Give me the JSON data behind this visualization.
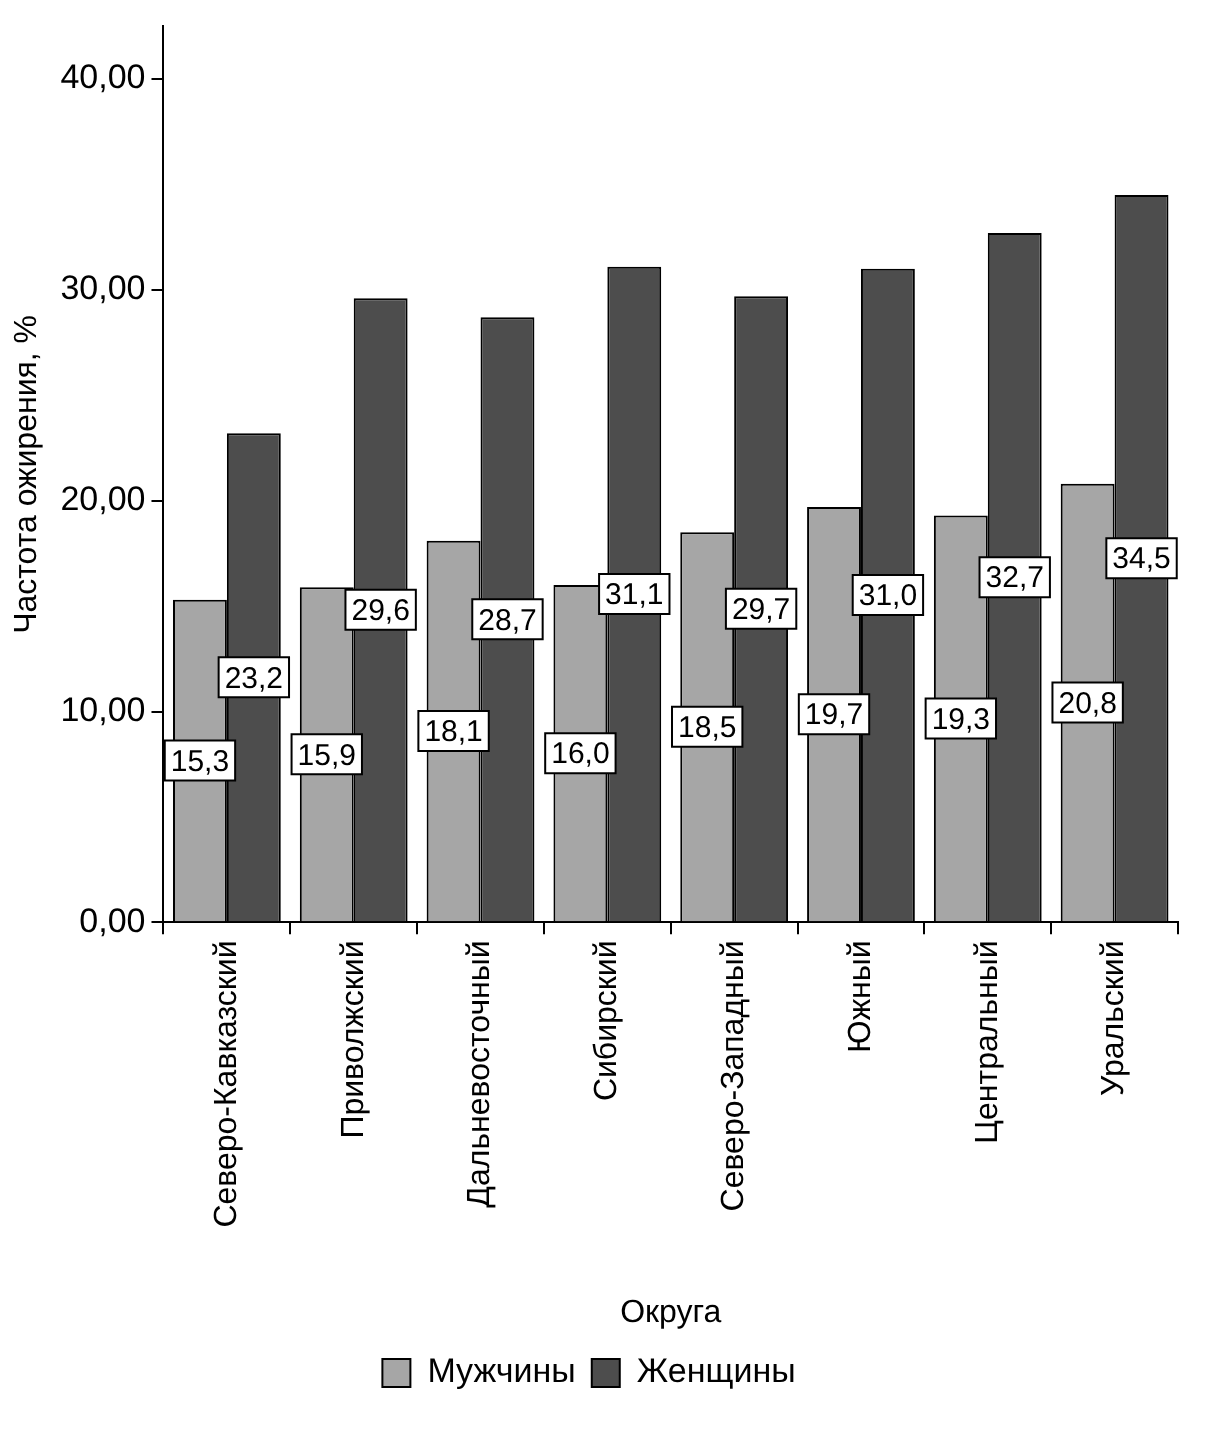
{
  "chart_data": {
    "type": "bar",
    "xlabel": "Округа",
    "ylabel": "Частота ожирения, %",
    "categories": [
      "Северо-Кавказский",
      "Приволжский",
      "Дальневосточный",
      "Сибирский",
      "Северо-Западный",
      "Южный",
      "Центральный",
      "Уральский"
    ],
    "series": [
      {
        "name": "Мужчины",
        "color": "#a6a6a6",
        "values": [
          15.3,
          15.9,
          18.1,
          16.0,
          18.5,
          19.7,
          19.3,
          20.8
        ],
        "value_labels": [
          "15,3",
          "15,9",
          "18,1",
          "16,0",
          "18,5",
          "19,7",
          "19,3",
          "20,8"
        ]
      },
      {
        "name": "Женщины",
        "color": "#4d4d4d",
        "values": [
          23.2,
          29.6,
          28.7,
          31.1,
          29.7,
          31.0,
          32.7,
          34.5
        ],
        "value_labels": [
          "23,2",
          "29,6",
          "28,7",
          "31,1",
          "29,7",
          "31,0",
          "32,7",
          "34,5"
        ]
      }
    ],
    "ylim": [
      0,
      42.5
    ],
    "yticks": [
      {
        "value": 0,
        "label": "0,00"
      },
      {
        "value": 10,
        "label": "10,00"
      },
      {
        "value": 20,
        "label": "20,00"
      },
      {
        "value": 30,
        "label": "30,00"
      },
      {
        "value": 40,
        "label": "40,00"
      }
    ],
    "grid": false,
    "legend": "bottom"
  }
}
